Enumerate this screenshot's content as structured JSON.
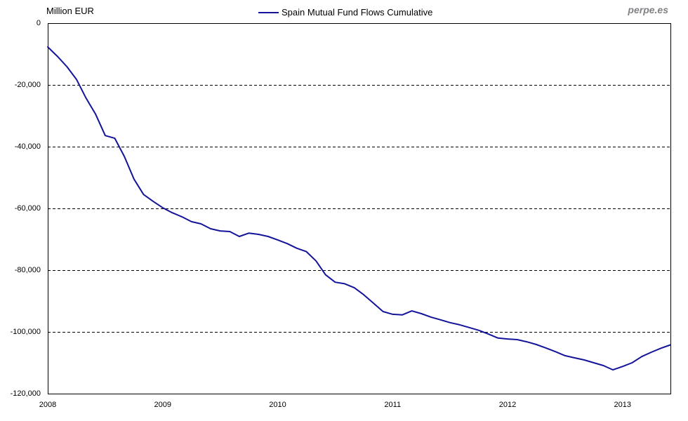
{
  "header": {
    "y_axis_title": "Million EUR",
    "brand": "perpe.es",
    "legend_label": "Spain Mutual Fund Flows Cumulative"
  },
  "colors": {
    "line": "#14149b",
    "grid": "#000000",
    "plot_border": "#000000",
    "text": "#000000",
    "brand_text": "#808285",
    "background": "#ffffff"
  },
  "chart_data": {
    "type": "line",
    "title": "Spain Mutual Fund Flows Cumulative",
    "ylabel": "Million EUR",
    "xlabel": "",
    "frequency": "monthly",
    "ylim": [
      -120000,
      0
    ],
    "y_ticks": [
      0,
      -20000,
      -40000,
      -60000,
      -80000,
      -100000,
      -120000
    ],
    "y_tick_labels": [
      "0",
      "-20,000",
      "-40,000",
      "-60,000",
      "-80,000",
      "-100,000",
      "-120,000"
    ],
    "x_tick_labels": [
      "2008",
      "2009",
      "2010",
      "2011",
      "2012",
      "2013"
    ],
    "grid": "horizontal-dashed",
    "legend_position": "top-center",
    "x": [
      "2008-01",
      "2008-02",
      "2008-03",
      "2008-04",
      "2008-05",
      "2008-06",
      "2008-07",
      "2008-08",
      "2008-09",
      "2008-10",
      "2008-11",
      "2008-12",
      "2009-01",
      "2009-02",
      "2009-03",
      "2009-04",
      "2009-05",
      "2009-06",
      "2009-07",
      "2009-08",
      "2009-09",
      "2009-10",
      "2009-11",
      "2009-12",
      "2010-01",
      "2010-02",
      "2010-03",
      "2010-04",
      "2010-05",
      "2010-06",
      "2010-07",
      "2010-08",
      "2010-09",
      "2010-10",
      "2010-11",
      "2010-12",
      "2011-01",
      "2011-02",
      "2011-03",
      "2011-04",
      "2011-05",
      "2011-06",
      "2011-07",
      "2011-08",
      "2011-09",
      "2011-10",
      "2011-11",
      "2011-12",
      "2012-01",
      "2012-02",
      "2012-03",
      "2012-04",
      "2012-05",
      "2012-06",
      "2012-07",
      "2012-08",
      "2012-09",
      "2012-10",
      "2012-11",
      "2012-12",
      "2013-01",
      "2013-02",
      "2013-03",
      "2013-04",
      "2013-05",
      "2013-06"
    ],
    "series": [
      {
        "name": "Spain Mutual Fund Flows Cumulative",
        "values": [
          -7700,
          -10700,
          -14100,
          -18200,
          -24300,
          -29500,
          -36400,
          -37300,
          -43200,
          -50500,
          -55500,
          -57700,
          -59800,
          -61400,
          -62700,
          -64300,
          -65000,
          -66600,
          -67300,
          -67500,
          -69100,
          -68000,
          -68400,
          -69100,
          -70200,
          -71400,
          -72900,
          -74000,
          -77000,
          -81500,
          -83900,
          -84400,
          -85700,
          -88000,
          -90700,
          -93400,
          -94300,
          -94500,
          -93200,
          -94100,
          -95200,
          -96100,
          -97000,
          -97700,
          -98600,
          -99500,
          -100700,
          -102000,
          -102300,
          -102500,
          -103200,
          -104100,
          -105200,
          -106400,
          -107700,
          -108400,
          -109100,
          -110000,
          -110900,
          -112300,
          -111200,
          -110000,
          -108000,
          -106600,
          -105300,
          -104200
        ]
      }
    ]
  }
}
